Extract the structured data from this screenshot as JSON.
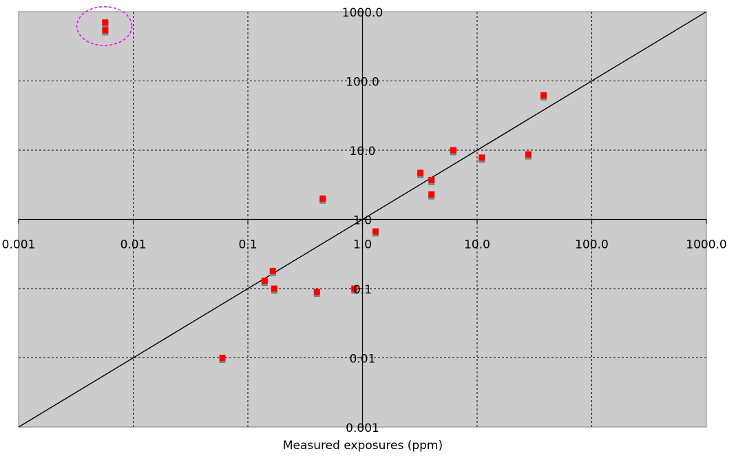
{
  "chart_data": {
    "type": "scatter",
    "xlabel": "Measured exposures (ppm)",
    "ylabel": "",
    "x_scale": "log",
    "y_scale": "log",
    "xlim": [
      0.001,
      1000
    ],
    "ylim": [
      0.001,
      1000
    ],
    "x_tick_labels": [
      "0.001",
      "0.01",
      "0.1",
      "1.0",
      "10.0",
      "100.0",
      "1000.0"
    ],
    "y_tick_labels": [
      "0.001",
      "0.01",
      "0.1",
      "1.0",
      "10.0",
      "100.0",
      "1000.0"
    ],
    "grid": true,
    "legend": "none",
    "colors": {
      "plot_background": "#cccccc",
      "marker": "#ff0000",
      "marker_shadow": "#808080",
      "reference_line": "#000000",
      "highlight_ellipse": "#ff00ff",
      "grid": "#000000"
    },
    "reference_line": {
      "type": "identity",
      "from": [
        0.001,
        0.001
      ],
      "to": [
        1000,
        1000
      ]
    },
    "highlight": {
      "shape": "ellipse",
      "style": "dashed",
      "center": [
        0.0056,
        620
      ],
      "semi_axis_x_decades": 0.24,
      "semi_axis_y_decades": 0.28
    },
    "points": [
      {
        "x": 0.0057,
        "y": 700
      },
      {
        "x": 0.0057,
        "y": 540
      },
      {
        "x": 0.06,
        "y": 0.01
      },
      {
        "x": 0.14,
        "y": 0.13
      },
      {
        "x": 0.165,
        "y": 0.18
      },
      {
        "x": 0.17,
        "y": 0.1
      },
      {
        "x": 0.4,
        "y": 0.09
      },
      {
        "x": 0.45,
        "y": 2.0
      },
      {
        "x": 0.85,
        "y": 0.1
      },
      {
        "x": 1.3,
        "y": 0.67
      },
      {
        "x": 3.2,
        "y": 4.7
      },
      {
        "x": 4.0,
        "y": 3.7
      },
      {
        "x": 4.0,
        "y": 2.3
      },
      {
        "x": 6.2,
        "y": 10.0
      },
      {
        "x": 11.0,
        "y": 7.8
      },
      {
        "x": 28.0,
        "y": 8.7
      },
      {
        "x": 38.0,
        "y": 62.0
      }
    ]
  }
}
